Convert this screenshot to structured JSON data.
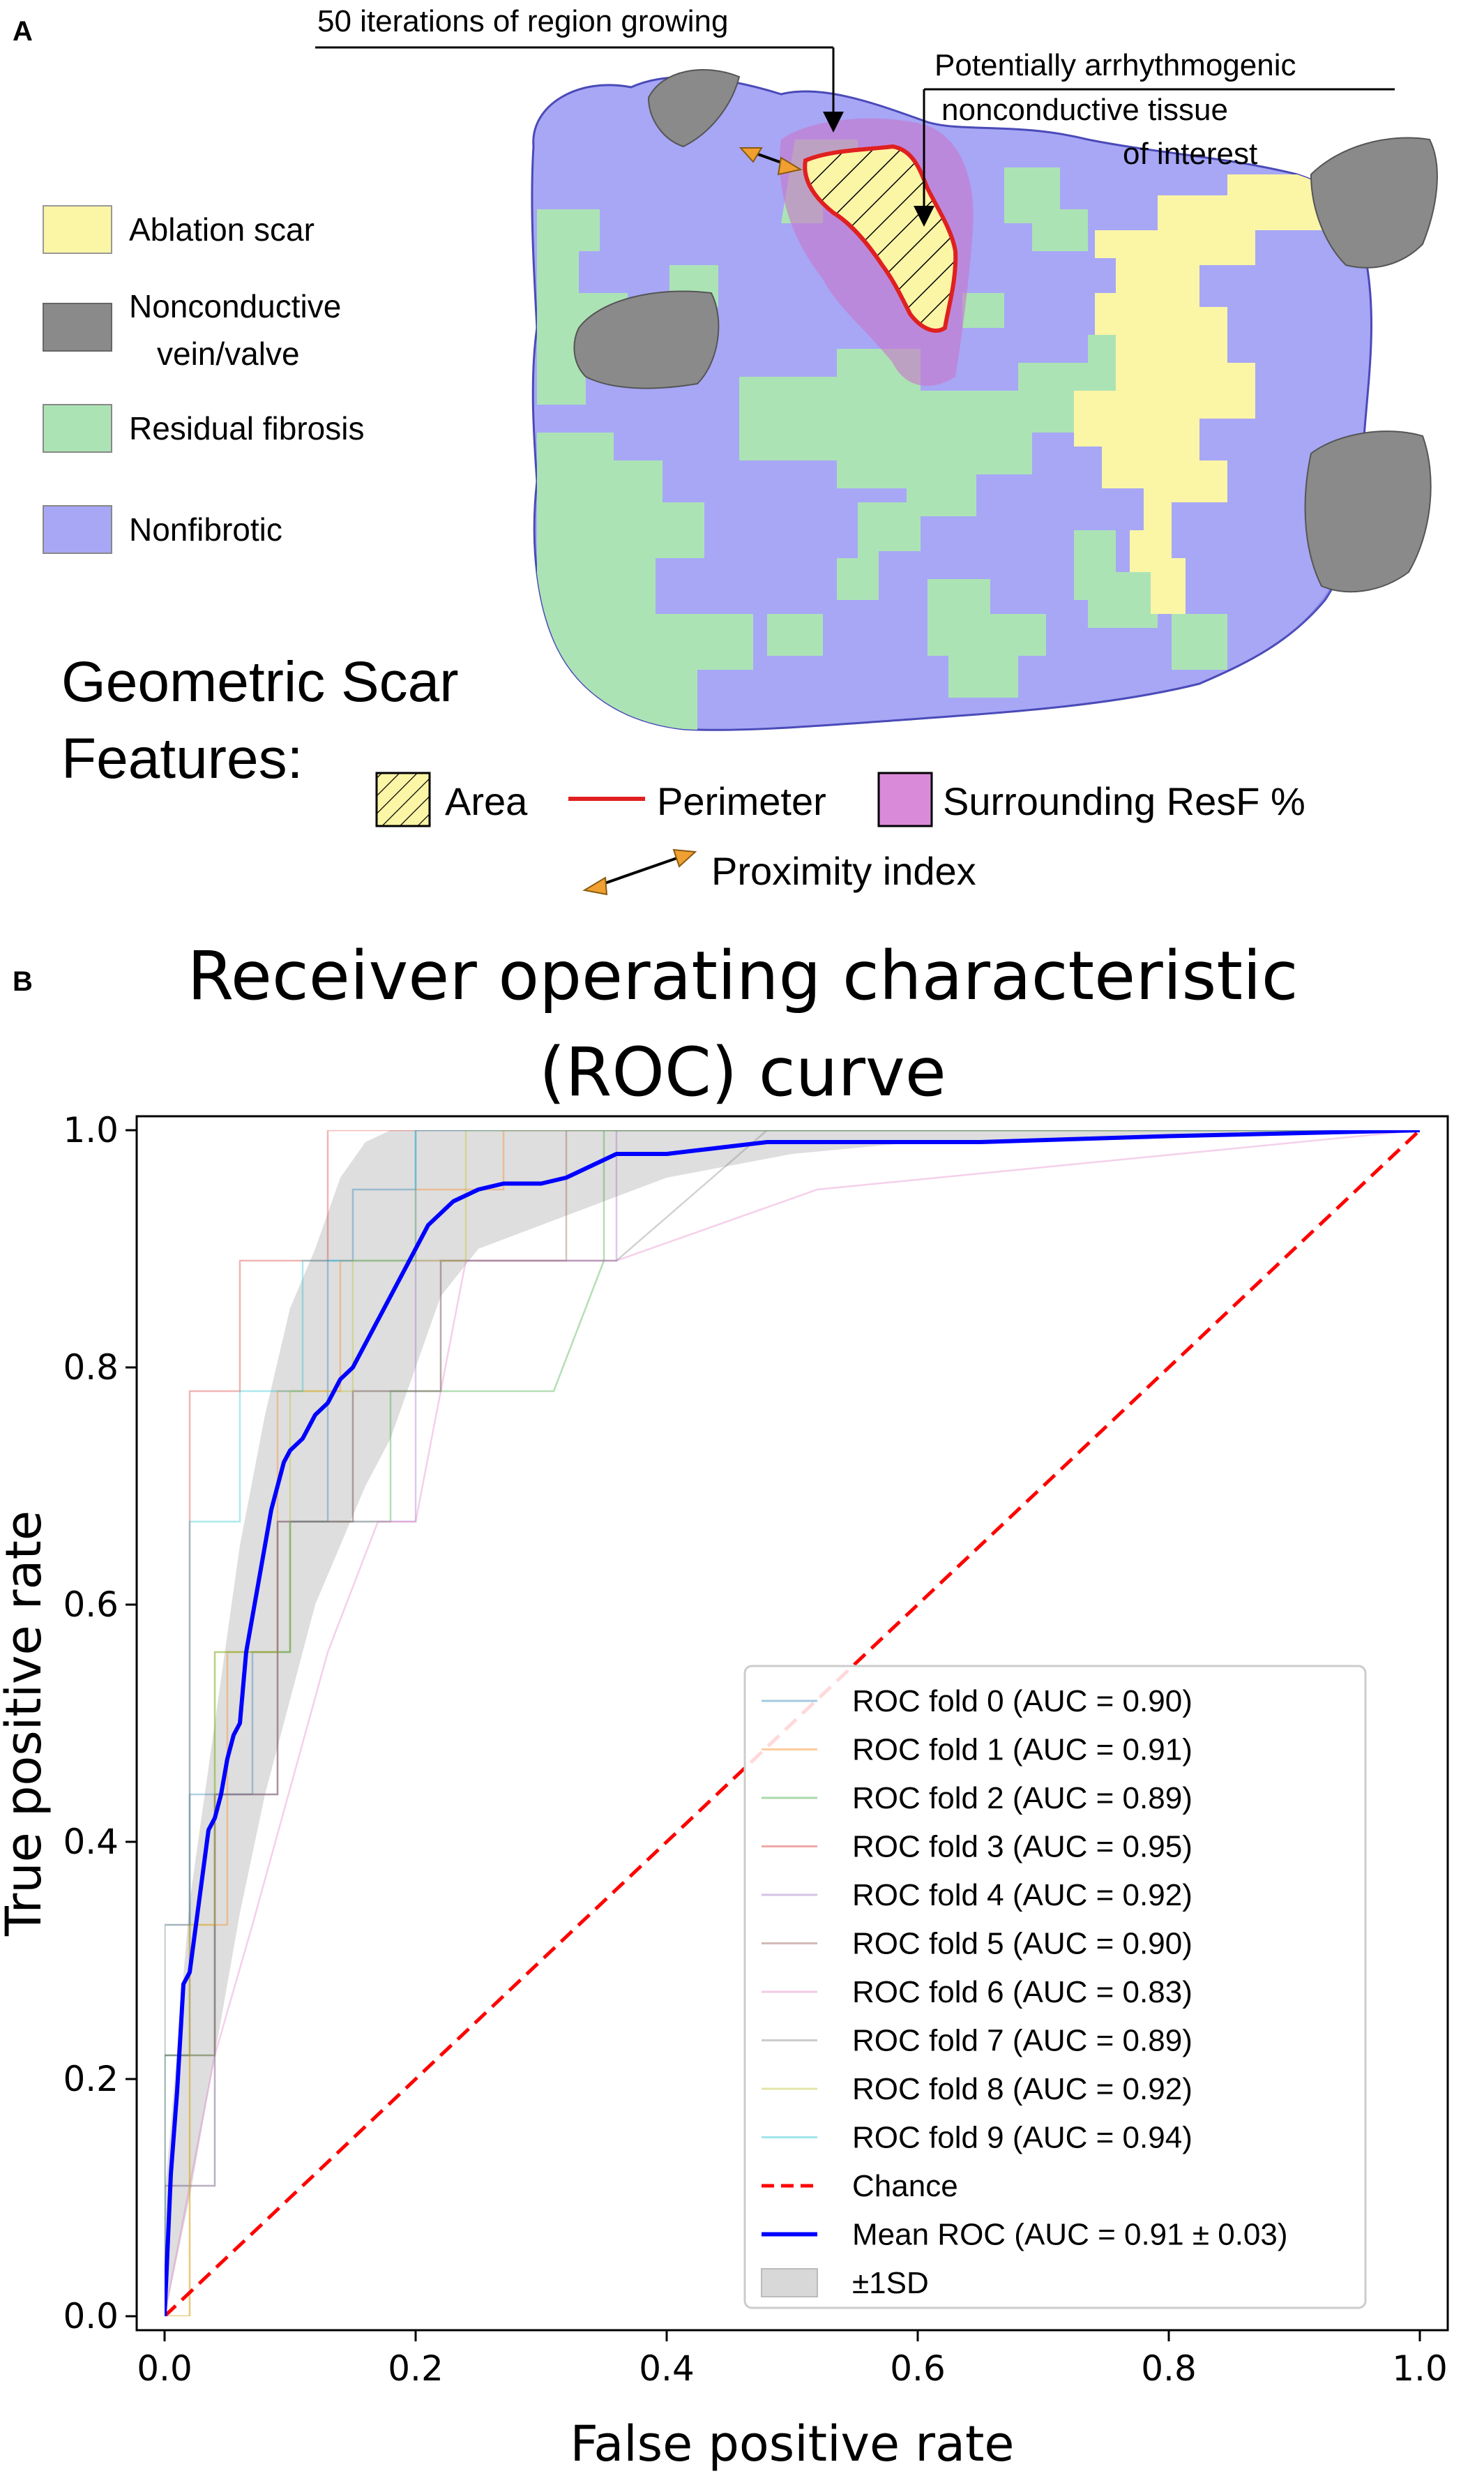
{
  "panel_a": {
    "label": "A",
    "legend": [
      {
        "label": "Ablation scar",
        "color": "#fbf5a6"
      },
      {
        "label": "Nonconductive",
        "label2": "vein/valve",
        "color": "#8a8a8a"
      },
      {
        "label": "Residual fibrosis",
        "color": "#ace3b5"
      },
      {
        "label": "Nonfibrotic",
        "color": "#a7a7f6"
      }
    ],
    "annotation_region": "50 iterations of region growing",
    "annotation_tissue": [
      "Potentially arrhythmogenic",
      "nonconductive tissue",
      "of interest"
    ],
    "features_title": [
      "Geometric Scar",
      "Features:"
    ],
    "features": {
      "area": "Area",
      "perimeter": "Perimeter",
      "surrounding": "Surrounding ResF %",
      "proximity": "Proximity index"
    },
    "colors": {
      "nonfibrotic": "#a7a7f6",
      "fibrosis": "#ace3b5",
      "scar": "#fbf5a6",
      "vein": "#8a8a8a",
      "perimeter": "#e02020",
      "surrounding": "#c875cc",
      "proximity_arrow": "#f0a030"
    }
  },
  "panel_b": {
    "label": "B"
  },
  "chart_data": {
    "type": "line",
    "title": [
      "Receiver operating characteristic",
      "(ROC) curve"
    ],
    "xlabel": "False positive rate",
    "ylabel": "True positive rate",
    "xlim": [
      0.0,
      1.0
    ],
    "ylim": [
      0.0,
      1.0
    ],
    "xticks": [
      "0.0",
      "0.2",
      "0.4",
      "0.6",
      "0.8",
      "1.0"
    ],
    "yticks": [
      "0.0",
      "0.2",
      "0.4",
      "0.6",
      "0.8",
      "1.0"
    ],
    "grid": false,
    "legend_position": "lower right",
    "series": [
      {
        "name": "ROC fold 0 (AUC = 0.90)",
        "color": "#1f77b4",
        "x": [
          0,
          0,
          0.02,
          0.02,
          0.07,
          0.07,
          0.1,
          0.1,
          0.13,
          0.13,
          0.15,
          0.15,
          0.2,
          0.2,
          1
        ],
        "y": [
          0,
          0.22,
          0.22,
          0.44,
          0.44,
          0.56,
          0.56,
          0.67,
          0.67,
          0.89,
          0.89,
          0.95,
          0.95,
          1,
          1
        ]
      },
      {
        "name": "ROC fold 1 (AUC = 0.91)",
        "color": "#ff7f0e",
        "x": [
          0,
          0.02,
          0.02,
          0.05,
          0.05,
          0.09,
          0.09,
          0.14,
          0.14,
          0.2,
          0.2,
          0.27,
          0.27,
          1
        ],
        "y": [
          0,
          0,
          0.33,
          0.33,
          0.56,
          0.56,
          0.78,
          0.78,
          0.89,
          0.89,
          0.95,
          0.95,
          1,
          1
        ]
      },
      {
        "name": "ROC fold 2 (AUC = 0.89)",
        "color": "#2ca02c",
        "x": [
          0,
          0,
          0.04,
          0.04,
          0.1,
          0.1,
          0.18,
          0.18,
          0.22,
          0.22,
          0.31,
          0.35,
          0.35,
          1
        ],
        "y": [
          0,
          0.22,
          0.22,
          0.56,
          0.56,
          0.67,
          0.67,
          0.78,
          0.78,
          0.78,
          0.78,
          0.89,
          1,
          1
        ]
      },
      {
        "name": "ROC fold 3 (AUC = 0.95)",
        "color": "#d62728",
        "x": [
          0,
          0,
          0.02,
          0.02,
          0.06,
          0.06,
          0.13,
          0.13,
          1
        ],
        "y": [
          0,
          0.33,
          0.33,
          0.78,
          0.78,
          0.89,
          0.89,
          1,
          1
        ]
      },
      {
        "name": "ROC fold 4 (AUC = 0.92)",
        "color": "#9467bd",
        "x": [
          0,
          0,
          0.04,
          0.04,
          0.09,
          0.09,
          0.2,
          0.2,
          0.36,
          0.36,
          1
        ],
        "y": [
          0,
          0.11,
          0.11,
          0.44,
          0.44,
          0.67,
          0.67,
          0.89,
          0.89,
          1,
          1
        ]
      },
      {
        "name": "ROC fold 5 (AUC = 0.90)",
        "color": "#8c564b",
        "x": [
          0,
          0,
          0.04,
          0.04,
          0.09,
          0.09,
          0.15,
          0.15,
          0.22,
          0.22,
          0.32,
          0.32,
          1
        ],
        "y": [
          0,
          0.22,
          0.22,
          0.44,
          0.44,
          0.67,
          0.67,
          0.78,
          0.78,
          0.89,
          0.89,
          1,
          1
        ]
      },
      {
        "name": "ROC fold 6 (AUC = 0.83)",
        "color": "#e377c2",
        "x": [
          0,
          0.04,
          0.04,
          0.07,
          0.07,
          0.13,
          0.13,
          0.17,
          0.2,
          0.24,
          0.36,
          0.52,
          1
        ],
        "y": [
          0,
          0.22,
          0.22,
          0.33,
          0.33,
          0.56,
          0.56,
          0.67,
          0.67,
          0.89,
          0.89,
          0.95,
          1
        ]
      },
      {
        "name": "ROC fold 7 (AUC = 0.89)",
        "color": "#7f7f7f",
        "x": [
          0,
          0,
          0.04,
          0.04,
          0.09,
          0.09,
          0.15,
          0.15,
          0.22,
          0.22,
          0.36,
          0.48,
          1
        ],
        "y": [
          0,
          0.11,
          0.11,
          0.44,
          0.44,
          0.67,
          0.67,
          0.78,
          0.78,
          0.89,
          0.89,
          1,
          1
        ]
      },
      {
        "name": "ROC fold 8 (AUC = 0.92)",
        "color": "#bcbd22",
        "x": [
          0,
          0.02,
          0.02,
          0.04,
          0.04,
          0.1,
          0.1,
          0.15,
          0.15,
          0.24,
          0.24,
          1
        ],
        "y": [
          0,
          0,
          0.33,
          0.33,
          0.56,
          0.56,
          0.78,
          0.78,
          0.89,
          0.89,
          1,
          1
        ]
      },
      {
        "name": "ROC fold 9 (AUC = 0.94)",
        "color": "#17becf",
        "x": [
          0,
          0,
          0.02,
          0.02,
          0.06,
          0.06,
          0.11,
          0.11,
          0.2,
          0.2,
          1
        ],
        "y": [
          0,
          0.33,
          0.33,
          0.67,
          0.67,
          0.78,
          0.78,
          0.89,
          0.89,
          1,
          1
        ]
      },
      {
        "name": "Chance",
        "color": "#ff0000",
        "dashed": true,
        "x": [
          0,
          1
        ],
        "y": [
          0,
          1
        ]
      },
      {
        "name": "Mean ROC (AUC = 0.91 ± 0.03)",
        "color": "#0000ff",
        "x": [
          0,
          0.005,
          0.01,
          0.015,
          0.02,
          0.025,
          0.03,
          0.035,
          0.04,
          0.045,
          0.05,
          0.055,
          0.06,
          0.065,
          0.07,
          0.075,
          0.08,
          0.085,
          0.09,
          0.095,
          0.1,
          0.11,
          0.12,
          0.13,
          0.135,
          0.14,
          0.15,
          0.16,
          0.17,
          0.18,
          0.19,
          0.2,
          0.21,
          0.22,
          0.23,
          0.25,
          0.27,
          0.3,
          0.32,
          0.34,
          0.36,
          0.4,
          0.44,
          0.48,
          0.55,
          0.65,
          0.8,
          1.0
        ],
        "y": [
          0,
          0.12,
          0.19,
          0.28,
          0.29,
          0.33,
          0.37,
          0.41,
          0.42,
          0.44,
          0.47,
          0.49,
          0.5,
          0.56,
          0.59,
          0.62,
          0.65,
          0.68,
          0.7,
          0.72,
          0.73,
          0.74,
          0.76,
          0.77,
          0.78,
          0.79,
          0.8,
          0.82,
          0.84,
          0.86,
          0.88,
          0.9,
          0.92,
          0.93,
          0.94,
          0.95,
          0.955,
          0.955,
          0.96,
          0.97,
          0.98,
          0.98,
          0.985,
          0.99,
          0.99,
          0.99,
          0.995,
          1.0
        ]
      },
      {
        "name": "±1SD",
        "color": "#c8c8c8",
        "band": true,
        "x": [
          0,
          0.02,
          0.04,
          0.06,
          0.08,
          0.1,
          0.12,
          0.14,
          0.16,
          0.18,
          0.2,
          0.22,
          0.25,
          0.3,
          0.35,
          0.4,
          0.5,
          0.6,
          0.8,
          1.0
        ],
        "upper": [
          0.1,
          0.35,
          0.5,
          0.65,
          0.76,
          0.85,
          0.9,
          0.96,
          0.99,
          1.0,
          1.0,
          1.0,
          1.0,
          1.0,
          1.0,
          1.0,
          1.0,
          1.0,
          1.0,
          1.0
        ],
        "lower": [
          0.0,
          0.1,
          0.22,
          0.34,
          0.44,
          0.52,
          0.6,
          0.65,
          0.7,
          0.74,
          0.8,
          0.86,
          0.9,
          0.92,
          0.94,
          0.96,
          0.98,
          0.99,
          0.995,
          1.0
        ]
      }
    ]
  }
}
